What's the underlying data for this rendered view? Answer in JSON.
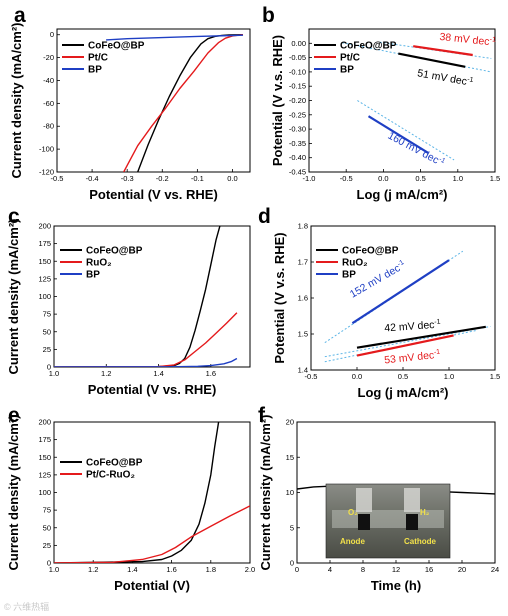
{
  "figure": {
    "watermark": "© 六维热辐"
  },
  "chart_data": [
    {
      "id": "a",
      "panel_label": "a",
      "type": "line",
      "xlabel": "Potential (V vs. RHE)",
      "ylabel": "Current density (mA/cm²)",
      "xlim": [
        -0.5,
        0.05
      ],
      "ylim": [
        -120,
        5
      ],
      "xticks": [
        -0.5,
        -0.4,
        -0.3,
        -0.2,
        -0.1,
        0.0
      ],
      "yticks": [
        0,
        -20,
        -40,
        -60,
        -80,
        -100,
        -120
      ],
      "legend": {
        "position": "top-left"
      },
      "series": [
        {
          "name": "CoFeO@BP",
          "color": "#000000",
          "x": [
            -0.27,
            -0.24,
            -0.21,
            -0.18,
            -0.15,
            -0.12,
            -0.09,
            -0.07,
            -0.05,
            -0.03,
            -0.01,
            0.01,
            0.03
          ],
          "y": [
            -120,
            -96,
            -74,
            -54,
            -36,
            -20,
            -8,
            -3.5,
            -1.5,
            -0.6,
            -0.2,
            -0.1,
            0
          ]
        },
        {
          "name": "Pt/C",
          "color": "#e41a1c",
          "x": [
            -0.31,
            -0.27,
            -0.23,
            -0.19,
            -0.15,
            -0.11,
            -0.07,
            -0.04,
            -0.02,
            0.0,
            0.02,
            0.03
          ],
          "y": [
            -120,
            -97,
            -80,
            -64,
            -47,
            -32,
            -16,
            -7,
            -3,
            -1,
            -0.3,
            0
          ]
        },
        {
          "name": "BP",
          "color": "#1f3fc4",
          "x": [
            -0.36,
            -0.3,
            -0.2,
            -0.1,
            0.0,
            0.03
          ],
          "y": [
            -4.5,
            -3.5,
            -2.5,
            -1.5,
            -0.7,
            -0.4
          ]
        }
      ]
    },
    {
      "id": "b",
      "panel_label": "b",
      "type": "line",
      "xlabel": "Log (j mA/cm²)",
      "ylabel": "Potential (V v.s. RHE)",
      "xlim": [
        -1.0,
        1.5
      ],
      "ylim": [
        -0.45,
        0.05
      ],
      "xticks": [
        -1.0,
        -0.5,
        0.0,
        0.5,
        1.0,
        1.5
      ],
      "yticks": [
        0.0,
        -0.05,
        -0.1,
        -0.15,
        -0.2,
        -0.25,
        -0.3,
        -0.35,
        -0.4,
        -0.45
      ],
      "legend": {
        "position": "top-left"
      },
      "series": [
        {
          "name": "CoFeO@BP",
          "color": "#000000",
          "x": [
            0.2,
            1.1
          ],
          "y": [
            -0.036,
            -0.082
          ]
        },
        {
          "name": "Pt/C",
          "color": "#e41a1c",
          "x": [
            0.4,
            1.2
          ],
          "y": [
            -0.01,
            -0.041
          ]
        },
        {
          "name": "BP",
          "color": "#1f3fc4",
          "x": [
            -0.2,
            0.6
          ],
          "y": [
            -0.255,
            -0.383
          ]
        }
      ],
      "fit_lines": [
        {
          "color": "#5ab4e6",
          "x": [
            -0.55,
            1.45
          ],
          "y": [
            0.002,
            -0.1
          ]
        },
        {
          "color": "#5ab4e6",
          "x": [
            -0.05,
            1.45
          ],
          "y": [
            0.004,
            -0.053
          ]
        },
        {
          "color": "#5ab4e6",
          "x": [
            -0.35,
            0.95
          ],
          "y": [
            -0.2,
            -0.408
          ]
        }
      ],
      "annotations": [
        {
          "text_main": "51 mV dec",
          "text_sup": "-1",
          "color": "#000000",
          "x": 0.45,
          "y": -0.115,
          "rotate": 10
        },
        {
          "text_main": "38 mV dec",
          "text_sup": "-1",
          "color": "#e41a1c",
          "x": 0.75,
          "y": 0.012,
          "rotate": 6
        },
        {
          "text_main": "160 mV dec",
          "text_sup": "-1",
          "color": "#1f3fc4",
          "x": 0.05,
          "y": -0.33,
          "rotate": 28
        }
      ]
    },
    {
      "id": "c",
      "panel_label": "c",
      "type": "line",
      "xlabel": "Potential (V vs. RHE)",
      "ylabel": "Current density (mA/cm²)",
      "xlim": [
        1.0,
        1.75
      ],
      "ylim": [
        0,
        200
      ],
      "xticks": [
        1.0,
        1.2,
        1.4,
        1.6
      ],
      "yticks": [
        0,
        25,
        50,
        75,
        100,
        125,
        150,
        175,
        200
      ],
      "legend": {
        "position": "top-left"
      },
      "series": [
        {
          "name": "CoFeO@BP",
          "color": "#000000",
          "x": [
            1.0,
            1.4,
            1.46,
            1.48,
            1.5,
            1.52,
            1.54,
            1.56,
            1.58,
            1.6,
            1.62,
            1.635
          ],
          "y": [
            0,
            0.5,
            2,
            5,
            12,
            28,
            52,
            80,
            110,
            145,
            180,
            200
          ]
        },
        {
          "name": "RuO₂",
          "color": "#e41a1c",
          "x": [
            1.0,
            1.4,
            1.46,
            1.5,
            1.54,
            1.58,
            1.62,
            1.66,
            1.7
          ],
          "y": [
            0,
            0.5,
            3,
            10,
            22,
            34,
            48,
            62,
            77
          ]
        },
        {
          "name": "BP",
          "color": "#1f3fc4",
          "x": [
            1.0,
            1.45,
            1.55,
            1.6,
            1.65,
            1.68,
            1.7
          ],
          "y": [
            0,
            0.3,
            1,
            2,
            4.5,
            8,
            12
          ]
        }
      ]
    },
    {
      "id": "d",
      "panel_label": "d",
      "type": "line",
      "xlabel": "Log (j mA/cm²)",
      "ylabel": "Potential (V v.s. RHE)",
      "xlim": [
        -0.5,
        1.5
      ],
      "ylim": [
        1.4,
        1.8
      ],
      "xticks": [
        -0.5,
        0.0,
        0.5,
        1.0,
        1.5
      ],
      "yticks": [
        1.4,
        1.5,
        1.6,
        1.7,
        1.8
      ],
      "legend": {
        "position": "top-left"
      },
      "series": [
        {
          "name": "CoFeO@BP",
          "color": "#000000",
          "x": [
            0.0,
            1.4
          ],
          "y": [
            1.462,
            1.52
          ]
        },
        {
          "name": "RuO₂",
          "color": "#e41a1c",
          "x": [
            0.0,
            1.05
          ],
          "y": [
            1.44,
            1.496
          ]
        },
        {
          "name": "BP",
          "color": "#1f3fc4",
          "x": [
            -0.05,
            1.0
          ],
          "y": [
            1.53,
            1.705
          ]
        }
      ],
      "fit_lines": [
        {
          "color": "#5ab4e6",
          "x": [
            -0.35,
            1.45
          ],
          "y": [
            1.437,
            1.521
          ]
        },
        {
          "color": "#5ab4e6",
          "x": [
            -0.35,
            1.3
          ],
          "y": [
            1.423,
            1.51
          ]
        },
        {
          "color": "#5ab4e6",
          "x": [
            -0.35,
            1.15
          ],
          "y": [
            1.476,
            1.73
          ]
        }
      ],
      "annotations": [
        {
          "text_main": "42 mV dec",
          "text_sup": "-1",
          "color": "#000000",
          "x": 0.3,
          "y": 1.507,
          "rotate": -4
        },
        {
          "text_main": "53 mV dec",
          "text_sup": "-1",
          "color": "#e41a1c",
          "x": 0.3,
          "y": 1.418,
          "rotate": -6
        },
        {
          "text_main": "152 mV dec",
          "text_sup": "-1",
          "color": "#1f3fc4",
          "x": -0.05,
          "y": 1.6,
          "rotate": -30
        }
      ]
    },
    {
      "id": "e",
      "panel_label": "e",
      "type": "line",
      "xlabel": "Potential (V)",
      "ylabel": "Current density (mA/cm²)",
      "xlim": [
        1.0,
        2.0
      ],
      "ylim": [
        0,
        200
      ],
      "xticks": [
        1.0,
        1.2,
        1.4,
        1.6,
        1.8,
        2.0
      ],
      "yticks": [
        0,
        25,
        50,
        75,
        100,
        125,
        150,
        175,
        200
      ],
      "legend": {
        "position": "top-left"
      },
      "series": [
        {
          "name": "CoFeO@BP",
          "color": "#000000",
          "x": [
            1.0,
            1.45,
            1.55,
            1.6,
            1.65,
            1.7,
            1.74,
            1.77,
            1.8,
            1.82,
            1.84
          ],
          "y": [
            0,
            2,
            5,
            10,
            18,
            32,
            55,
            85,
            125,
            165,
            200
          ]
        },
        {
          "name": "Pt/C-RuO₂",
          "color": "#e41a1c",
          "x": [
            1.0,
            1.3,
            1.45,
            1.55,
            1.62,
            1.7,
            1.8,
            1.9,
            2.0
          ],
          "y": [
            0,
            1,
            5,
            12,
            22,
            37,
            52,
            67,
            81
          ]
        }
      ]
    },
    {
      "id": "f",
      "panel_label": "f",
      "type": "line",
      "xlabel": "Time (h)",
      "ylabel": "Current density (mA/cm²)",
      "xlim": [
        0,
        24
      ],
      "ylim": [
        0,
        20
      ],
      "xticks": [
        0,
        4,
        8,
        12,
        16,
        20,
        24
      ],
      "yticks": [
        0,
        5,
        10,
        15,
        20
      ],
      "series": [
        {
          "name": "",
          "color": "#000000",
          "x": [
            0,
            2,
            4,
            6,
            8,
            10,
            12,
            14,
            16,
            18,
            20,
            22,
            24
          ],
          "y": [
            10.5,
            10.8,
            10.9,
            10.7,
            10.6,
            10.5,
            10.4,
            10.3,
            10.2,
            10.1,
            10.0,
            9.9,
            9.8
          ]
        }
      ],
      "inset": {
        "label_o2": "O₂",
        "label_h2": "H₂",
        "label_anode": "Anode",
        "label_cathode": "Cathode"
      }
    }
  ]
}
